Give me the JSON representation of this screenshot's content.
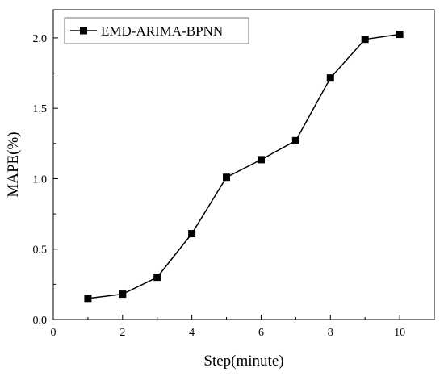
{
  "chart_data": {
    "type": "line",
    "xlabel": "Step(minute)",
    "ylabel": "MAPE(%)",
    "xlim": [
      0,
      11
    ],
    "ylim": [
      0,
      2.2
    ],
    "xticks": [
      "0",
      "2",
      "4",
      "6",
      "8",
      "10"
    ],
    "xtick_values": [
      0,
      2,
      4,
      6,
      8,
      10
    ],
    "yticks": [
      "0.0",
      "0.5",
      "1.0",
      "1.5",
      "2.0"
    ],
    "ytick_values": [
      0,
      0.5,
      1.0,
      1.5,
      2.0
    ],
    "grid": false,
    "legend_position": "top-left",
    "marker": "square",
    "series": [
      {
        "name": "EMD-ARIMA-BPNN",
        "color": "#000000",
        "x": [
          1,
          2,
          3,
          4,
          5,
          6,
          7,
          8,
          9,
          10
        ],
        "y": [
          0.15,
          0.18,
          0.3,
          0.61,
          1.01,
          1.135,
          1.27,
          1.715,
          1.99,
          2.025
        ]
      }
    ]
  }
}
